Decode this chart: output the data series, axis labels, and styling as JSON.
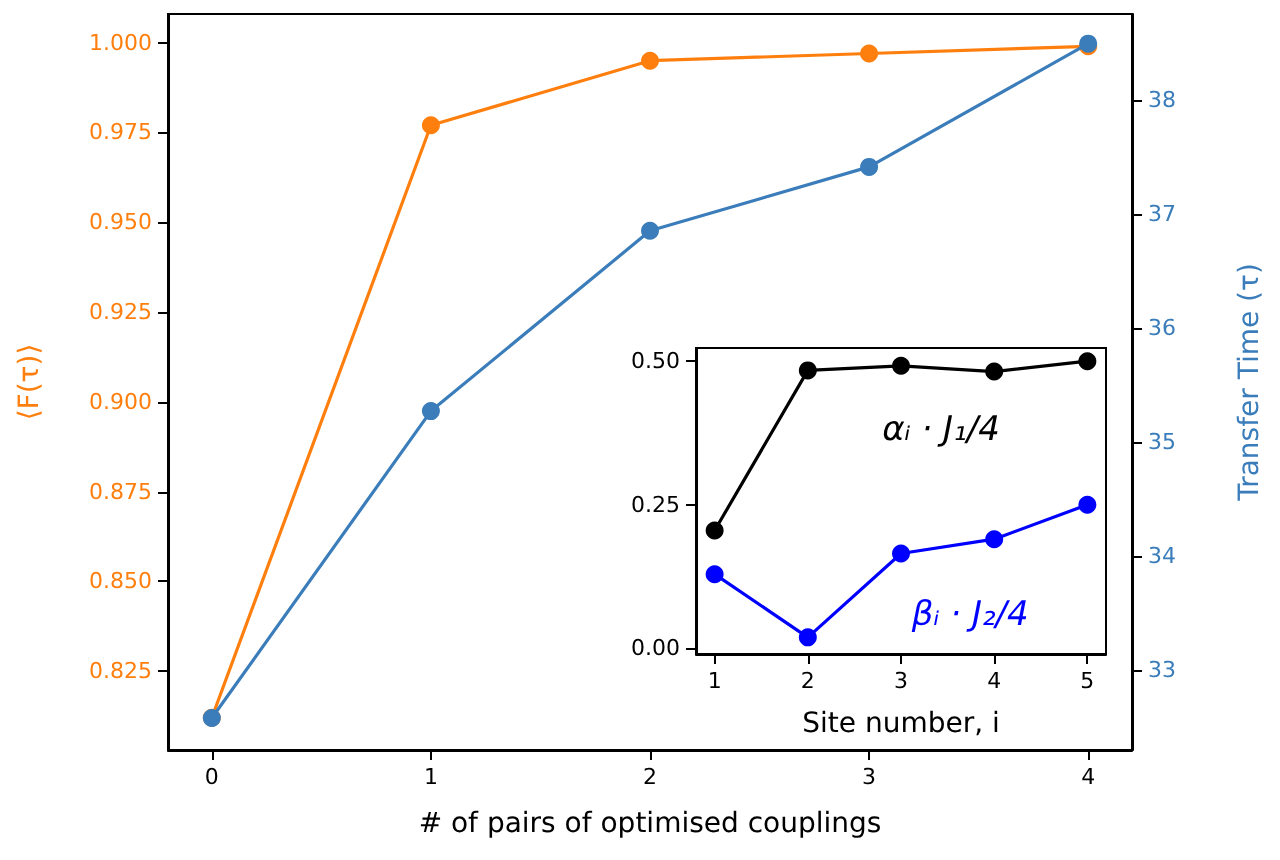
{
  "chart_data": [
    {
      "type": "line",
      "xlabel": "# of pairs of optimised couplings",
      "ylabel": "⟨F(τ)⟩",
      "y2label": "Transfer Time (τ)",
      "x": [
        0,
        1,
        2,
        3,
        4
      ],
      "xlim": [
        -0.2,
        4.2
      ],
      "xticks": [
        0,
        1,
        2,
        3,
        4
      ],
      "ylim": [
        0.803,
        1.008
      ],
      "yticks": [
        {
          "value": 0.825,
          "label": "0.825"
        },
        {
          "value": 0.85,
          "label": "0.850"
        },
        {
          "value": 0.875,
          "label": "0.875"
        },
        {
          "value": 0.9,
          "label": "0.900"
        },
        {
          "value": 0.925,
          "label": "0.925"
        },
        {
          "value": 0.95,
          "label": "0.950"
        },
        {
          "value": 0.975,
          "label": "0.975"
        },
        {
          "value": 1.0,
          "label": "1.000"
        }
      ],
      "y2lim": [
        32.3,
        38.75
      ],
      "y2ticks": [
        33,
        34,
        35,
        36,
        37,
        38
      ],
      "series": [
        {
          "color": "#ff7f0e",
          "values": [
            0.812,
            0.977,
            0.995,
            0.997,
            0.999
          ]
        },
        {
          "color": "#3a7dba",
          "axis": "y2",
          "values": [
            32.58,
            35.27,
            36.85,
            37.41,
            38.49
          ]
        }
      ],
      "marker": "circle",
      "grid": false
    },
    {
      "type": "line",
      "xlabel": "Site number, i",
      "x": [
        1,
        2,
        3,
        4,
        5
      ],
      "xlim": [
        0.8,
        5.2
      ],
      "xticks": [
        1,
        2,
        3,
        4,
        5
      ],
      "ylim": [
        -0.01,
        0.523
      ],
      "yticks": [
        {
          "value": 0,
          "label": "0.00"
        },
        {
          "value": 0.25,
          "label": "0.25"
        },
        {
          "value": 0.5,
          "label": "0.50"
        }
      ],
      "series": [
        {
          "name": "αᵢ · J₁/4",
          "color": "#000000",
          "values": [
            0.205,
            0.484,
            0.492,
            0.482,
            0.5
          ]
        },
        {
          "name": "βᵢ · J₂/4",
          "color": "#0000ff",
          "values": [
            0.129,
            0.019,
            0.165,
            0.19,
            0.25
          ]
        }
      ],
      "marker": "circle",
      "grid": false
    }
  ]
}
